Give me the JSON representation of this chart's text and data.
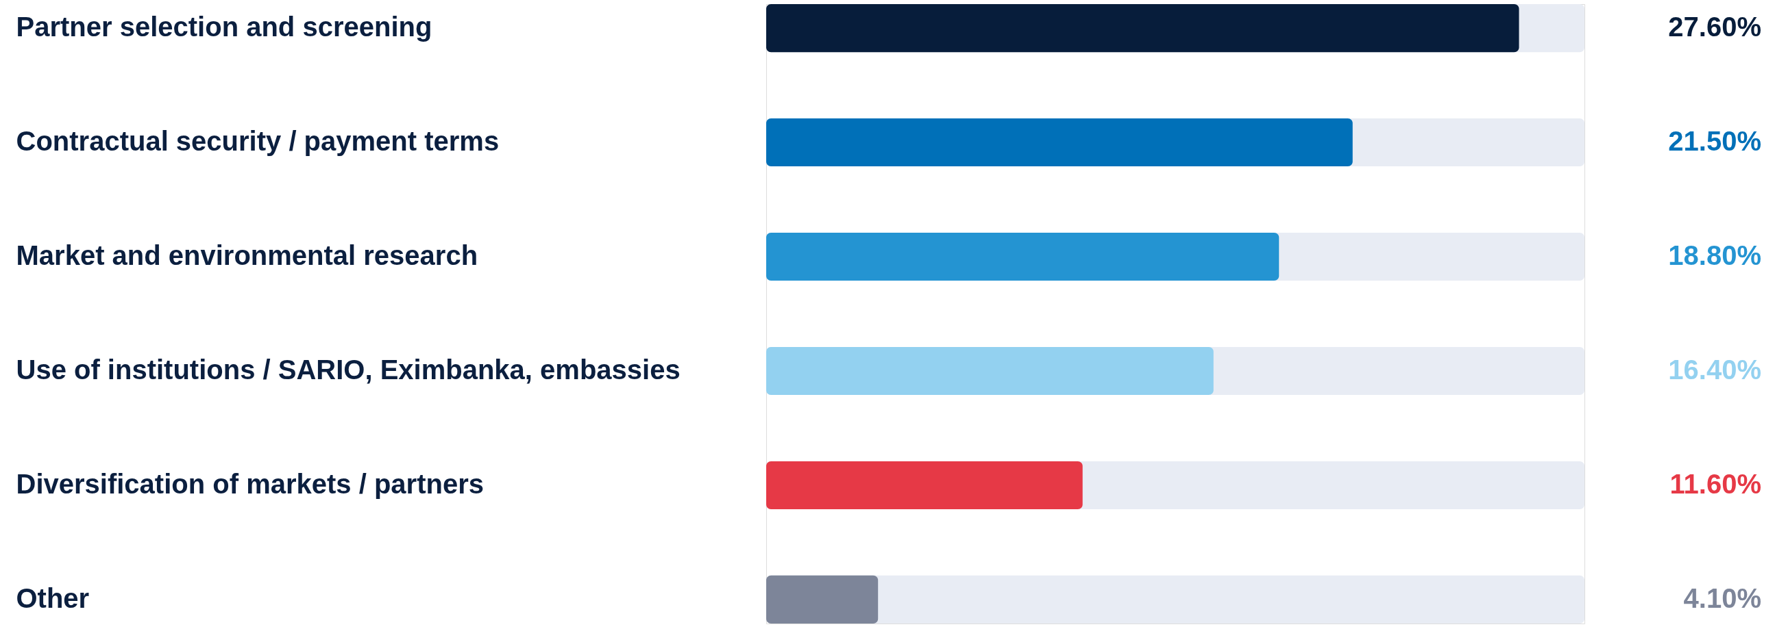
{
  "chart_data": {
    "type": "bar",
    "orientation": "horizontal",
    "categories": [
      "Partner selection and screening",
      "Contractual security / payment terms",
      "Market and environmental research",
      "Use of institutions / SARIO, Eximbanka, embassies",
      "Diversification of markets / partners",
      "Other"
    ],
    "values": [
      27.6,
      21.5,
      18.8,
      16.4,
      11.6,
      4.1
    ],
    "colors": [
      "#071d3b",
      "#0070b8",
      "#2494d2",
      "#93d1f0",
      "#e63946",
      "#7d8599"
    ],
    "value_labels": [
      "27.60%",
      "21.50%",
      "18.80%",
      "16.40%",
      "11.60%",
      "4.10%"
    ],
    "xlim": [
      0,
      30
    ],
    "tick_labels": "y"
  }
}
